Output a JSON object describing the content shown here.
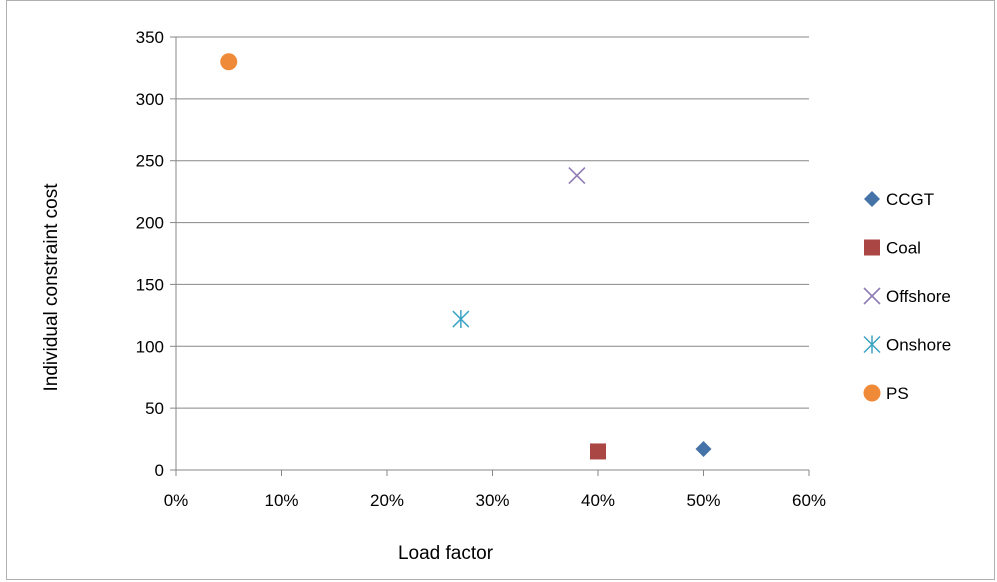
{
  "chart_data": {
    "type": "scatter",
    "title": "",
    "xlabel": "Load factor",
    "ylabel": "Individual constraint cost",
    "xlim": [
      0,
      0.6
    ],
    "ylim": [
      0,
      350
    ],
    "x_ticks": [
      0,
      0.1,
      0.2,
      0.3,
      0.4,
      0.5,
      0.6
    ],
    "x_tick_labels": [
      "0%",
      "10%",
      "20%",
      "30%",
      "40%",
      "50%",
      "60%"
    ],
    "y_ticks": [
      0,
      50,
      100,
      150,
      200,
      250,
      300,
      350
    ],
    "y_tick_labels": [
      "0",
      "50",
      "100",
      "150",
      "200",
      "250",
      "300",
      "350"
    ],
    "grid": "horizontal major gridlines",
    "legend_position": "right",
    "series": [
      {
        "name": "CCGT",
        "marker": "diamond",
        "color": "#4572a7",
        "points": [
          {
            "x": 0.5,
            "y": 17
          }
        ]
      },
      {
        "name": "Coal",
        "marker": "square",
        "color": "#aa4643",
        "points": [
          {
            "x": 0.4,
            "y": 15
          }
        ]
      },
      {
        "name": "Offshore",
        "marker": "x",
        "color": "#8f7bb3",
        "points": [
          {
            "x": 0.38,
            "y": 238
          }
        ]
      },
      {
        "name": "Onshore",
        "marker": "star",
        "color": "#3ba3c4",
        "points": [
          {
            "x": 0.27,
            "y": 122
          }
        ]
      },
      {
        "name": "PS",
        "marker": "circle",
        "color": "#ef8a38",
        "points": [
          {
            "x": 0.05,
            "y": 330
          }
        ]
      }
    ]
  }
}
